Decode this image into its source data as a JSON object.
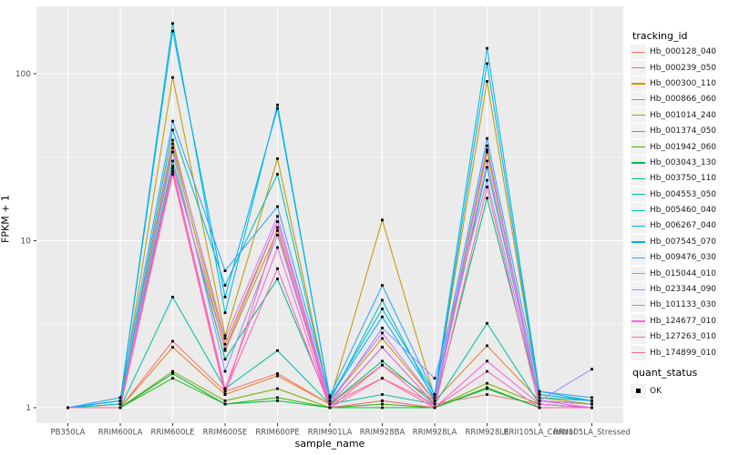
{
  "figure": {
    "background": "#FFFFFF",
    "panel_background": "#EBEBEB",
    "gridline_color": "#FFFFFF",
    "tick_color": "#333333",
    "tick_label_color": "#4D4D4D"
  },
  "axes": {
    "x_title": "sample_name",
    "y_title": "FPKM + 1"
  },
  "legend": {
    "color_title": "tracking_id",
    "shape_title": "quant_status",
    "shape_item_label": "OK",
    "shape_item_marker": "filled-black-square",
    "key_background": "#F2F2F2"
  },
  "chart_data": {
    "type": "line",
    "title": "",
    "xlabel": "sample_name",
    "ylabel": "FPKM + 1",
    "yscale": "log10",
    "ylim": [
      1,
      230
    ],
    "yticks": [
      1,
      10,
      100
    ],
    "ytick_labels": [
      "1",
      "10",
      "100"
    ],
    "yminor": [
      3.1623,
      31.623
    ],
    "grid": true,
    "legend_position": "right",
    "point_marker": "small-black-square",
    "x": [
      "PB350LA",
      "RRIM600LA",
      "RRIM600LE",
      "RRIM600SE",
      "RRIM600PE",
      "RRIM901LA",
      "RRIM928BA",
      "RRIM928LA",
      "RRIM928LE",
      "RRII105LA_Control",
      "RRII105LA_Stressed"
    ],
    "series": [
      {
        "name": "Hb_000128_040",
        "color": "#F8766D",
        "values": [
          1.0,
          1.0,
          2.5,
          1.25,
          1.6,
          1.05,
          1.5,
          1.05,
          1.2,
          1.05,
          1.0
        ]
      },
      {
        "name": "Hb_000239_050",
        "color": "#EA8331",
        "values": [
          1.0,
          1.0,
          2.3,
          1.2,
          1.55,
          1.05,
          1.8,
          1.1,
          2.35,
          1.1,
          1.05
        ]
      },
      {
        "name": "Hb_000300_110",
        "color": "#D89000",
        "values": [
          1.0,
          1.05,
          40,
          2.4,
          13,
          1.1,
          2.6,
          1.1,
          34,
          1.15,
          1.05
        ]
      },
      {
        "name": "Hb_000866_060",
        "color": "#C09B00",
        "values": [
          1.0,
          1.05,
          95,
          2.7,
          31,
          1.1,
          13.3,
          1.15,
          90,
          1.2,
          1.1
        ]
      },
      {
        "name": "Hb_001014_240",
        "color": "#A3A500",
        "values": [
          1.0,
          1.0,
          36,
          2.2,
          11.5,
          1.05,
          2.3,
          1.05,
          35,
          1.1,
          1.05
        ]
      },
      {
        "name": "Hb_001374_050",
        "color": "#7CAE00",
        "values": [
          1.0,
          1.0,
          1.65,
          1.1,
          1.3,
          1.0,
          1.1,
          1.0,
          1.4,
          1.05,
          1.0
        ]
      },
      {
        "name": "Hb_001942_060",
        "color": "#39B600",
        "values": [
          1.0,
          1.0,
          1.5,
          1.05,
          1.15,
          1.0,
          1.05,
          1.0,
          1.32,
          1.0,
          1.0
        ]
      },
      {
        "name": "Hb_003043_130",
        "color": "#00BB4E",
        "values": [
          1.0,
          1.0,
          1.6,
          1.05,
          1.1,
          1.0,
          1.0,
          1.0,
          1.3,
          1.0,
          1.0
        ]
      },
      {
        "name": "Hb_003750_110",
        "color": "#00BF7D",
        "values": [
          1.0,
          1.0,
          30,
          1.95,
          5.9,
          1.05,
          1.9,
          1.05,
          18,
          1.1,
          1.05
        ]
      },
      {
        "name": "Hb_004553_050",
        "color": "#00C1A3",
        "values": [
          1.0,
          1.0,
          4.6,
          1.3,
          2.2,
          1.05,
          1.2,
          1.05,
          3.2,
          1.05,
          1.0
        ]
      },
      {
        "name": "Hb_005460_040",
        "color": "#00BFC4",
        "values": [
          1.0,
          1.05,
          46,
          5.4,
          25,
          1.1,
          4.4,
          1.1,
          27.5,
          1.15,
          1.1
        ]
      },
      {
        "name": "Hb_006267_040",
        "color": "#00BAE0",
        "values": [
          1.0,
          1.1,
          200,
          3.7,
          65,
          1.15,
          3.9,
          1.2,
          142,
          1.25,
          1.1
        ]
      },
      {
        "name": "Hb_007545_070",
        "color": "#00B0F6",
        "values": [
          1.0,
          1.1,
          180,
          4.6,
          62,
          1.15,
          3.5,
          1.15,
          115,
          1.2,
          1.1
        ]
      },
      {
        "name": "Hb_009476_030",
        "color": "#35A2FF",
        "values": [
          1.0,
          1.15,
          52,
          6.6,
          16,
          1.18,
          5.4,
          1.2,
          41,
          1.25,
          1.15
        ]
      },
      {
        "name": "Hb_015044_010",
        "color": "#9590FF",
        "values": [
          1.0,
          1.0,
          34,
          1.65,
          10.8,
          1.05,
          3.0,
          1.5,
          23,
          1.1,
          1.7
        ]
      },
      {
        "name": "Hb_023344_090",
        "color": "#C77CFF",
        "values": [
          1.0,
          1.0,
          38,
          2.6,
          14,
          1.1,
          2.8,
          1.1,
          37,
          1.1,
          1.05
        ]
      },
      {
        "name": "Hb_101133_030",
        "color": "#E76BF3",
        "values": [
          1.0,
          1.0,
          28,
          2.25,
          13,
          1.05,
          2.3,
          1.05,
          30,
          1.1,
          1.0
        ]
      },
      {
        "name": "Hb_124677_010",
        "color": "#FA62DB",
        "values": [
          1.0,
          1.0,
          27,
          1.3,
          9.1,
          1.0,
          1.8,
          1.0,
          1.9,
          1.05,
          1.0
        ]
      },
      {
        "name": "Hb_127263_010",
        "color": "#FF62BC",
        "values": [
          1.0,
          1.0,
          26,
          1.25,
          6.8,
          1.0,
          1.5,
          1.0,
          1.65,
          1.0,
          1.0
        ]
      },
      {
        "name": "Hb_174899_010",
        "color": "#FF6A98",
        "values": [
          1.0,
          1.0,
          25,
          1.2,
          12,
          1.0,
          1.1,
          1.0,
          21,
          1.0,
          1.0
        ]
      }
    ]
  }
}
